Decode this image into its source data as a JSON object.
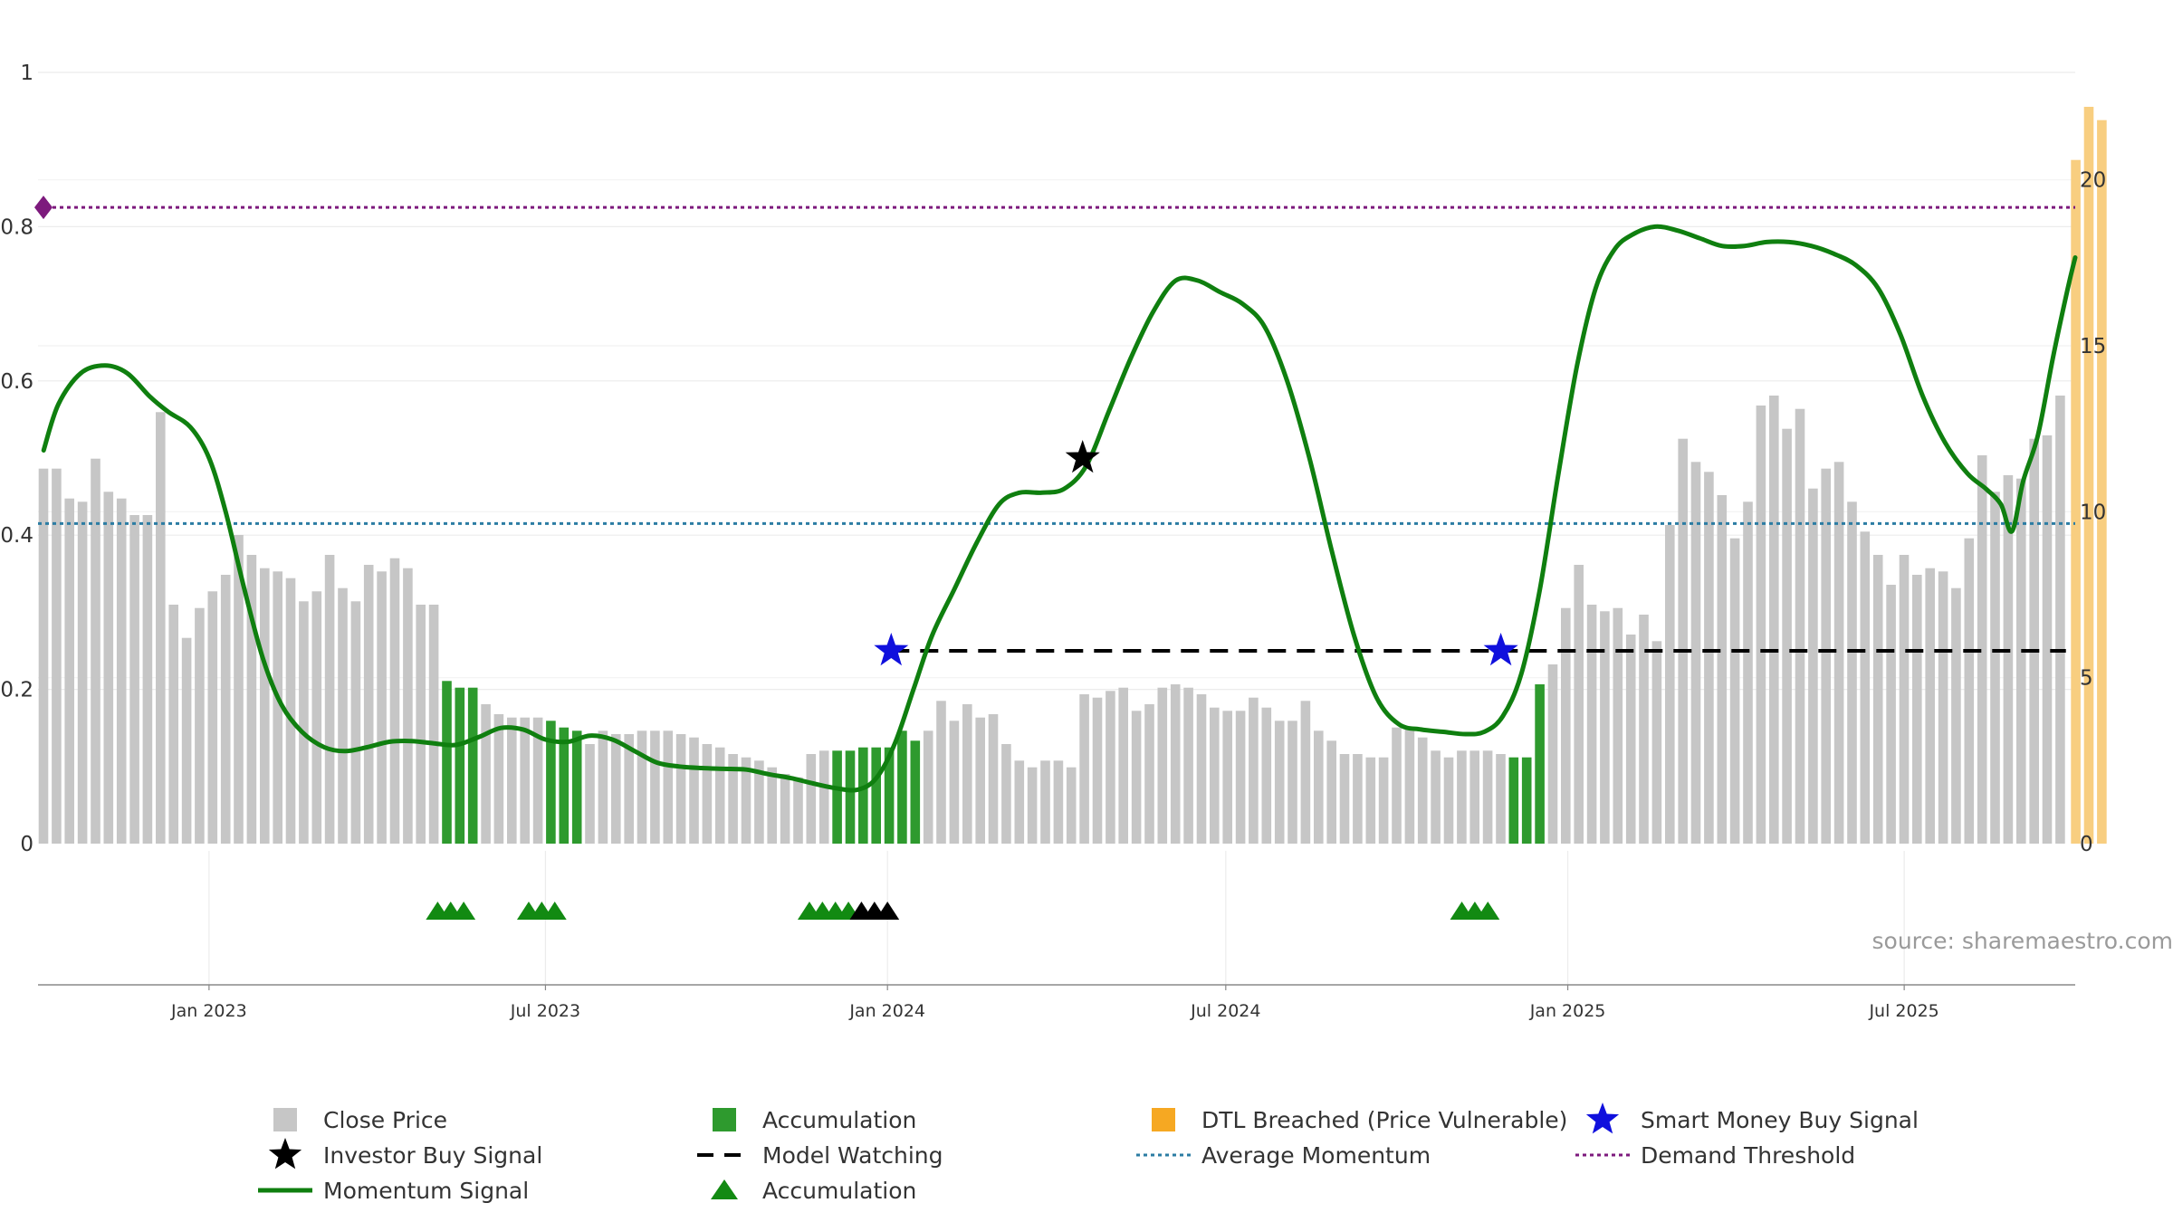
{
  "chart_data": {
    "type": "bar+line",
    "title": "",
    "source": "source: sharemaestro.com",
    "left_axis": {
      "ylim": [
        0,
        1
      ],
      "ticks": [
        0,
        0.2,
        0.4,
        0.6,
        0.8,
        1
      ],
      "tick_labels": [
        "0",
        "0.2",
        "0.4",
        "0.6",
        "0.8",
        "1"
      ]
    },
    "right_axis": {
      "ylim": [
        0,
        22.2
      ],
      "ticks": [
        0,
        5,
        10,
        15,
        20
      ],
      "tick_labels": [
        "0",
        "5",
        "10",
        "15",
        "20"
      ]
    },
    "x_axis": {
      "start": "2022-10-01",
      "end": "2025-10-01",
      "ticks": [
        {
          "date": "2023-01-01",
          "label": "Jan 2023"
        },
        {
          "date": "2023-07-01",
          "label": "Jul 2023"
        },
        {
          "date": "2024-01-01",
          "label": "Jan 2024"
        },
        {
          "date": "2024-07-01",
          "label": "Jul 2024"
        },
        {
          "date": "2025-01-01",
          "label": "Jan 2025"
        },
        {
          "date": "2025-07-01",
          "label": "Jul 2025"
        }
      ]
    },
    "close_price": {
      "name": "Close Price",
      "start": "2022-10-01",
      "interval_days": 7,
      "values": [
        11.3,
        11.3,
        10.4,
        10.3,
        11.6,
        10.6,
        10.4,
        9.9,
        9.9,
        13,
        7.2,
        6.2,
        7.1,
        7.6,
        8.1,
        9.3,
        8.7,
        8.3,
        8.2,
        8.0,
        7.3,
        7.6,
        8.7,
        7.7,
        7.3,
        8.4,
        8.2,
        8.6,
        8.3,
        7.2,
        7.2,
        4.9,
        4.7,
        4.7,
        4.2,
        3.9,
        3.8,
        3.8,
        3.8,
        3.7,
        3.5,
        3.4,
        3.0,
        3.4,
        3.3,
        3.3,
        3.4,
        3.4,
        3.4,
        3.3,
        3.2,
        3.0,
        2.9,
        2.7,
        2.6,
        2.5,
        2.3,
        2.1,
        2.0,
        2.7,
        2.8,
        2.8,
        2.8,
        2.9,
        2.9,
        2.9,
        3.4,
        3.1,
        3.4,
        4.3,
        3.7,
        4.2,
        3.8,
        3.9,
        3.0,
        2.5,
        2.3,
        2.5,
        2.5,
        2.3,
        4.5,
        4.4,
        4.6,
        4.7,
        4.0,
        4.2,
        4.7,
        4.8,
        4.7,
        4.5,
        4.1,
        4.0,
        4.0,
        4.4,
        4.1,
        3.7,
        3.7,
        4.3,
        3.4,
        3.1,
        2.7,
        2.7,
        2.6,
        2.6,
        3.5,
        3.5,
        3.2,
        2.8,
        2.6,
        2.8,
        2.8,
        2.8,
        2.7,
        2.6,
        2.6,
        4.8,
        5.4,
        7.1,
        8.4,
        7.2,
        7.0,
        7.1,
        6.3,
        6.9,
        6.1,
        9.6,
        12.2,
        11.5,
        11.2,
        10.5,
        9.2,
        10.3,
        13.2,
        13.5,
        12.5,
        13.1,
        10.7,
        11.3,
        11.5,
        10.3,
        9.4,
        8.7,
        7.8,
        8.7,
        8.1,
        8.3,
        8.2,
        7.7,
        9.2,
        11.7,
        10.6,
        11.1,
        11.0,
        12.2,
        12.3,
        13.5
      ]
    },
    "accumulation_bars": {
      "name": "Accumulation",
      "color": "#2e9a2e",
      "indices": [
        31,
        32,
        33,
        39,
        40,
        41,
        61,
        62,
        63,
        64,
        65,
        66,
        67,
        113,
        114,
        115
      ]
    },
    "dtl_breached": {
      "name": "DTL Breached (Price Vulnerable)",
      "color": "#f8ce80",
      "values": [
        20.6,
        22.2,
        21.8
      ]
    },
    "momentum_signal": {
      "name": "Momentum Signal",
      "color": "#0f7f0f",
      "points": [
        [
          "2022-10-04",
          0.51
        ],
        [
          "2022-10-12",
          0.57
        ],
        [
          "2022-10-24",
          0.61
        ],
        [
          "2022-11-06",
          0.62
        ],
        [
          "2022-11-18",
          0.61
        ],
        [
          "2022-11-30",
          0.58
        ],
        [
          "2022-12-10",
          0.56
        ],
        [
          "2022-12-22",
          0.54
        ],
        [
          "2023-01-01",
          0.5
        ],
        [
          "2023-01-10",
          0.43
        ],
        [
          "2023-01-20",
          0.33
        ],
        [
          "2023-01-30",
          0.24
        ],
        [
          "2023-02-09",
          0.18
        ],
        [
          "2023-02-20",
          0.145
        ],
        [
          "2023-03-04",
          0.125
        ],
        [
          "2023-03-15",
          0.12
        ],
        [
          "2023-03-27",
          0.125
        ],
        [
          "2023-04-08",
          0.132
        ],
        [
          "2023-04-20",
          0.133
        ],
        [
          "2023-05-02",
          0.13
        ],
        [
          "2023-05-14",
          0.128
        ],
        [
          "2023-05-26",
          0.138
        ],
        [
          "2023-06-07",
          0.15
        ],
        [
          "2023-06-19",
          0.148
        ],
        [
          "2023-07-01",
          0.135
        ],
        [
          "2023-07-13",
          0.132
        ],
        [
          "2023-07-25",
          0.14
        ],
        [
          "2023-08-06",
          0.135
        ],
        [
          "2023-08-18",
          0.12
        ],
        [
          "2023-08-30",
          0.105
        ],
        [
          "2023-09-11",
          0.1
        ],
        [
          "2023-09-23",
          0.098
        ],
        [
          "2023-10-05",
          0.097
        ],
        [
          "2023-10-17",
          0.096
        ],
        [
          "2023-10-29",
          0.09
        ],
        [
          "2023-11-10",
          0.085
        ],
        [
          "2023-11-22",
          0.078
        ],
        [
          "2023-12-04",
          0.072
        ],
        [
          "2023-12-16",
          0.07
        ],
        [
          "2023-12-26",
          0.085
        ],
        [
          "2024-01-05",
          0.13
        ],
        [
          "2024-01-15",
          0.2
        ],
        [
          "2024-01-25",
          0.27
        ],
        [
          "2024-02-06",
          0.33
        ],
        [
          "2024-02-18",
          0.39
        ],
        [
          "2024-03-01",
          0.44
        ],
        [
          "2024-03-12",
          0.455
        ],
        [
          "2024-03-24",
          0.455
        ],
        [
          "2024-04-05",
          0.46
        ],
        [
          "2024-04-17",
          0.49
        ],
        [
          "2024-04-29",
          0.56
        ],
        [
          "2024-05-11",
          0.63
        ],
        [
          "2024-05-23",
          0.69
        ],
        [
          "2024-06-04",
          0.73
        ],
        [
          "2024-06-16",
          0.73
        ],
        [
          "2024-06-28",
          0.715
        ],
        [
          "2024-07-10",
          0.7
        ],
        [
          "2024-07-22",
          0.67
        ],
        [
          "2024-08-03",
          0.6
        ],
        [
          "2024-08-15",
          0.5
        ],
        [
          "2024-08-27",
          0.38
        ],
        [
          "2024-09-08",
          0.27
        ],
        [
          "2024-09-20",
          0.19
        ],
        [
          "2024-10-02",
          0.155
        ],
        [
          "2024-10-14",
          0.148
        ],
        [
          "2024-10-26",
          0.145
        ],
        [
          "2024-11-07",
          0.142
        ],
        [
          "2024-11-17",
          0.145
        ],
        [
          "2024-11-27",
          0.165
        ],
        [
          "2024-12-07",
          0.22
        ],
        [
          "2024-12-17",
          0.33
        ],
        [
          "2024-12-27",
          0.48
        ],
        [
          "2025-01-06",
          0.62
        ],
        [
          "2025-01-16",
          0.72
        ],
        [
          "2025-01-26",
          0.77
        ],
        [
          "2025-02-05",
          0.79
        ],
        [
          "2025-02-17",
          0.8
        ],
        [
          "2025-03-01",
          0.795
        ],
        [
          "2025-03-13",
          0.785
        ],
        [
          "2025-03-25",
          0.775
        ],
        [
          "2025-04-06",
          0.775
        ],
        [
          "2025-04-18",
          0.78
        ],
        [
          "2025-04-30",
          0.78
        ],
        [
          "2025-05-12",
          0.775
        ],
        [
          "2025-05-24",
          0.765
        ],
        [
          "2025-06-05",
          0.75
        ],
        [
          "2025-06-17",
          0.72
        ],
        [
          "2025-06-29",
          0.66
        ],
        [
          "2025-07-11",
          0.58
        ],
        [
          "2025-07-23",
          0.52
        ],
        [
          "2025-08-04",
          0.48
        ],
        [
          "2025-08-14",
          0.46
        ],
        [
          "2025-08-22",
          0.44
        ],
        [
          "2025-08-28",
          0.405
        ],
        [
          "2025-09-03",
          0.47
        ],
        [
          "2025-09-11",
          0.53
        ],
        [
          "2025-09-19",
          0.63
        ],
        [
          "2025-09-27",
          0.72
        ],
        [
          "2025-10-01",
          0.76
        ]
      ]
    },
    "model_watching": {
      "name": "Model Watching",
      "y": 0.25,
      "start": "2024-01-03",
      "end": "2025-09-26"
    },
    "average_momentum": {
      "name": "Average Momentum",
      "y": 0.415,
      "color": "#2b7ca3"
    },
    "demand_threshold": {
      "name": "Demand Threshold",
      "y": 0.825,
      "color": "#7d1a7d"
    },
    "investor_buy_signals": {
      "name": "Investor Buy Signal",
      "points": [
        [
          "2024-04-15",
          0.5
        ]
      ]
    },
    "smart_money_buy_signals": {
      "name": "Smart Money Buy Signal",
      "points": [
        [
          "2024-01-03",
          0.25
        ],
        [
          "2024-11-26",
          0.25
        ]
      ]
    },
    "accumulation_markers": {
      "name": "Accumulation",
      "green_dates": [
        "2023-05-04",
        "2023-05-11",
        "2023-05-18",
        "2023-06-22",
        "2023-06-29",
        "2023-07-06",
        "2023-11-20",
        "2023-11-27",
        "2023-12-04",
        "2023-12-11",
        "2024-11-05",
        "2024-11-12",
        "2024-11-19"
      ],
      "black_dates": [
        "2023-12-18",
        "2023-12-25",
        "2024-01-01"
      ]
    }
  },
  "legend": [
    {
      "label": "Close Price",
      "symbol": "square-gray"
    },
    {
      "label": "Accumulation",
      "symbol": "square-green"
    },
    {
      "label": "DTL Breached (Price Vulnerable)",
      "symbol": "square-orange"
    },
    {
      "label": "Smart Money Buy Signal",
      "symbol": "star-blue"
    },
    {
      "label": "Investor Buy Signal",
      "symbol": "star-black"
    },
    {
      "label": "Model Watching",
      "symbol": "dash-black"
    },
    {
      "label": "Average Momentum",
      "symbol": "dot-blue"
    },
    {
      "label": "Demand Threshold",
      "symbol": "dot-purple"
    },
    {
      "label": "Momentum Signal",
      "symbol": "line-green"
    },
    {
      "label": "Accumulation",
      "symbol": "triangle-green"
    }
  ],
  "colors": {
    "close_price": "#c6c6c6",
    "accumulation": "#2e9a2e",
    "dtl": "#f8ce80",
    "momentum": "#0f7f0f",
    "star_blue": "#1010dd",
    "star_black": "#000000",
    "marker_green": "#128a12",
    "marker_black": "#000000",
    "grid": "#ececec",
    "axis": "#888888"
  }
}
